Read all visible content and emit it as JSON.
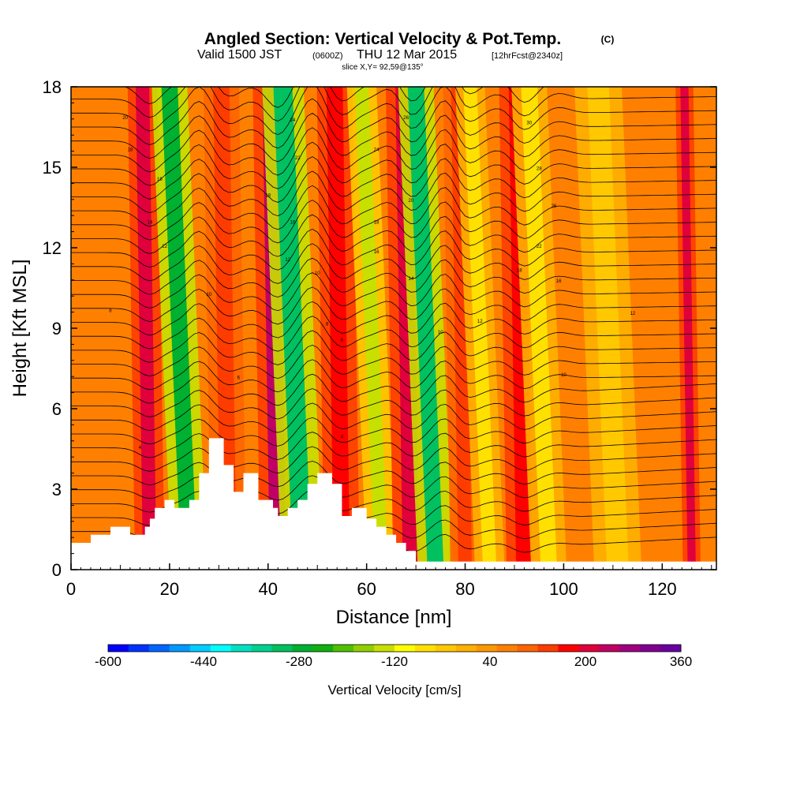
{
  "chart_data": {
    "type": "heatmap",
    "title": "Angled Section: Vertical Velocity & Pot.Temp.",
    "title_unit": "(C)",
    "subtitle_valid": "Valid 1500 JST",
    "subtitle_utc": "(0600Z)",
    "subtitle_date": "THU 12 Mar 2015",
    "subtitle_fcst": "[12hrFcst@2340z]",
    "slice_label": "slice X,Y= 92,59@135°",
    "xlabel": "Distance [nm]",
    "ylabel": "Height [Kft MSL]",
    "xlim": [
      0,
      131
    ],
    "ylim": [
      0,
      18
    ],
    "x_ticks": [
      0,
      20,
      40,
      60,
      80,
      100,
      120
    ],
    "y_ticks": [
      0,
      3,
      6,
      9,
      12,
      15,
      18
    ],
    "colorbar": {
      "label": "Vertical Velocity [cm/s]",
      "range": [
        -600,
        360
      ],
      "tick_values": [
        -600,
        -440,
        -280,
        -120,
        40,
        200,
        360
      ],
      "colors": [
        "#0000ff",
        "#0033ff",
        "#0066ff",
        "#0099ff",
        "#00ccff",
        "#00ffff",
        "#00e0c0",
        "#00d090",
        "#00c060",
        "#00b030",
        "#10b010",
        "#50c000",
        "#90d000",
        "#c8e000",
        "#ffff00",
        "#ffe000",
        "#ffc800",
        "#ffb000",
        "#ff9800",
        "#ff8000",
        "#ff6400",
        "#ff3c00",
        "#ff0000",
        "#e0003c",
        "#c00064",
        "#a00080",
        "#800090",
        "#6a00a0"
      ]
    },
    "background_velocity_cm_s": 60,
    "velocity_bands": [
      {
        "x": 16,
        "value": 190,
        "width": 2.5
      },
      {
        "x": 26,
        "value": -280,
        "width": 3
      },
      {
        "x": 32,
        "value": 120,
        "width": 3
      },
      {
        "x": 42,
        "value": 230,
        "width": 3
      },
      {
        "x": 49,
        "value": -320,
        "width": 3.5
      },
      {
        "x": 55,
        "value": 170,
        "width": 3
      },
      {
        "x": 65,
        "value": -130,
        "width": 2.5
      },
      {
        "x": 69,
        "value": 190,
        "width": 3
      },
      {
        "x": 76,
        "value": -320,
        "width": 3
      },
      {
        "x": 80,
        "value": 130,
        "width": 2.5
      },
      {
        "x": 87,
        "value": -60,
        "width": 2.5
      },
      {
        "x": 92,
        "value": 180,
        "width": 3
      },
      {
        "x": 99,
        "value": -60,
        "width": 3
      },
      {
        "x": 113,
        "value": -40,
        "width": 4
      },
      {
        "x": 126,
        "value": 210,
        "width": 1.5
      }
    ],
    "terrain_kft": [
      [
        0,
        1.0
      ],
      [
        4,
        1.0
      ],
      [
        4,
        1.3
      ],
      [
        8,
        1.3
      ],
      [
        8,
        1.6
      ],
      [
        12,
        1.6
      ],
      [
        12,
        1.3
      ],
      [
        15,
        1.3
      ],
      [
        15,
        1.6
      ],
      [
        16,
        1.6
      ],
      [
        16,
        1.9
      ],
      [
        17,
        1.9
      ],
      [
        17,
        2.3
      ],
      [
        19,
        2.3
      ],
      [
        19,
        2.6
      ],
      [
        21,
        2.6
      ],
      [
        21,
        2.3
      ],
      [
        24,
        2.3
      ],
      [
        24,
        2.6
      ],
      [
        26,
        2.6
      ],
      [
        26,
        3.6
      ],
      [
        28,
        3.6
      ],
      [
        28,
        4.9
      ],
      [
        31,
        4.9
      ],
      [
        31,
        3.9
      ],
      [
        33,
        3.9
      ],
      [
        33,
        2.9
      ],
      [
        35,
        2.9
      ],
      [
        35,
        3.6
      ],
      [
        38,
        3.6
      ],
      [
        38,
        2.6
      ],
      [
        41,
        2.6
      ],
      [
        41,
        2.3
      ],
      [
        42,
        2.3
      ],
      [
        42,
        2.0
      ],
      [
        44,
        2.0
      ],
      [
        44,
        2.3
      ],
      [
        46,
        2.3
      ],
      [
        46,
        2.6
      ],
      [
        48,
        2.6
      ],
      [
        48,
        3.2
      ],
      [
        50,
        3.2
      ],
      [
        50,
        3.6
      ],
      [
        53,
        3.6
      ],
      [
        53,
        3.2
      ],
      [
        55,
        3.2
      ],
      [
        55,
        2.0
      ],
      [
        57,
        2.0
      ],
      [
        57,
        2.3
      ],
      [
        60,
        2.3
      ],
      [
        60,
        1.9
      ],
      [
        62,
        1.9
      ],
      [
        62,
        1.6
      ],
      [
        64,
        1.6
      ],
      [
        64,
        1.3
      ],
      [
        66,
        1.3
      ],
      [
        66,
        1.0
      ],
      [
        68,
        1.0
      ],
      [
        68,
        0.7
      ],
      [
        70,
        0.7
      ],
      [
        70,
        0.3
      ],
      [
        131,
        0.3
      ]
    ],
    "contour_labels": [
      "20",
      "18",
      "16",
      "14",
      "12",
      "10",
      "8",
      "6",
      "4",
      "24",
      "22",
      "30",
      "28"
    ],
    "contour_label_positions": [
      {
        "text": "20",
        "x": 11,
        "y": 16.8
      },
      {
        "text": "18",
        "x": 12,
        "y": 15.6
      },
      {
        "text": "16",
        "x": 18,
        "y": 14.5
      },
      {
        "text": "14",
        "x": 16,
        "y": 12.9
      },
      {
        "text": "12",
        "x": 19,
        "y": 12.0
      },
      {
        "text": "10",
        "x": 28,
        "y": 10.2
      },
      {
        "text": "8",
        "x": 8,
        "y": 9.6
      },
      {
        "text": "6",
        "x": 34,
        "y": 7.1
      },
      {
        "text": "4",
        "x": 14,
        "y": 4.5
      },
      {
        "text": "24",
        "x": 45,
        "y": 16.7
      },
      {
        "text": "22",
        "x": 46,
        "y": 15.3
      },
      {
        "text": "18",
        "x": 40,
        "y": 13.9
      },
      {
        "text": "16",
        "x": 45,
        "y": 12.9
      },
      {
        "text": "12",
        "x": 44,
        "y": 11.5
      },
      {
        "text": "10",
        "x": 50,
        "y": 11.0
      },
      {
        "text": "8",
        "x": 52,
        "y": 9.1
      },
      {
        "text": "6",
        "x": 55,
        "y": 8.5
      },
      {
        "text": "4",
        "x": 55,
        "y": 4.9
      },
      {
        "text": "26",
        "x": 68,
        "y": 16.8
      },
      {
        "text": "24",
        "x": 62,
        "y": 15.6
      },
      {
        "text": "20",
        "x": 69,
        "y": 13.7
      },
      {
        "text": "18",
        "x": 62,
        "y": 12.9
      },
      {
        "text": "16",
        "x": 62,
        "y": 11.8
      },
      {
        "text": "14",
        "x": 69,
        "y": 10.8
      },
      {
        "text": "10",
        "x": 75,
        "y": 8.8
      },
      {
        "text": "12",
        "x": 83,
        "y": 9.2
      },
      {
        "text": "30",
        "x": 93,
        "y": 16.6
      },
      {
        "text": "28",
        "x": 95,
        "y": 14.9
      },
      {
        "text": "26",
        "x": 98,
        "y": 13.5
      },
      {
        "text": "22",
        "x": 95,
        "y": 12.0
      },
      {
        "text": "18",
        "x": 91,
        "y": 11.1
      },
      {
        "text": "16",
        "x": 99,
        "y": 10.7
      },
      {
        "text": "10",
        "x": 100,
        "y": 7.2
      },
      {
        "text": "12",
        "x": 114,
        "y": 9.5
      }
    ]
  }
}
